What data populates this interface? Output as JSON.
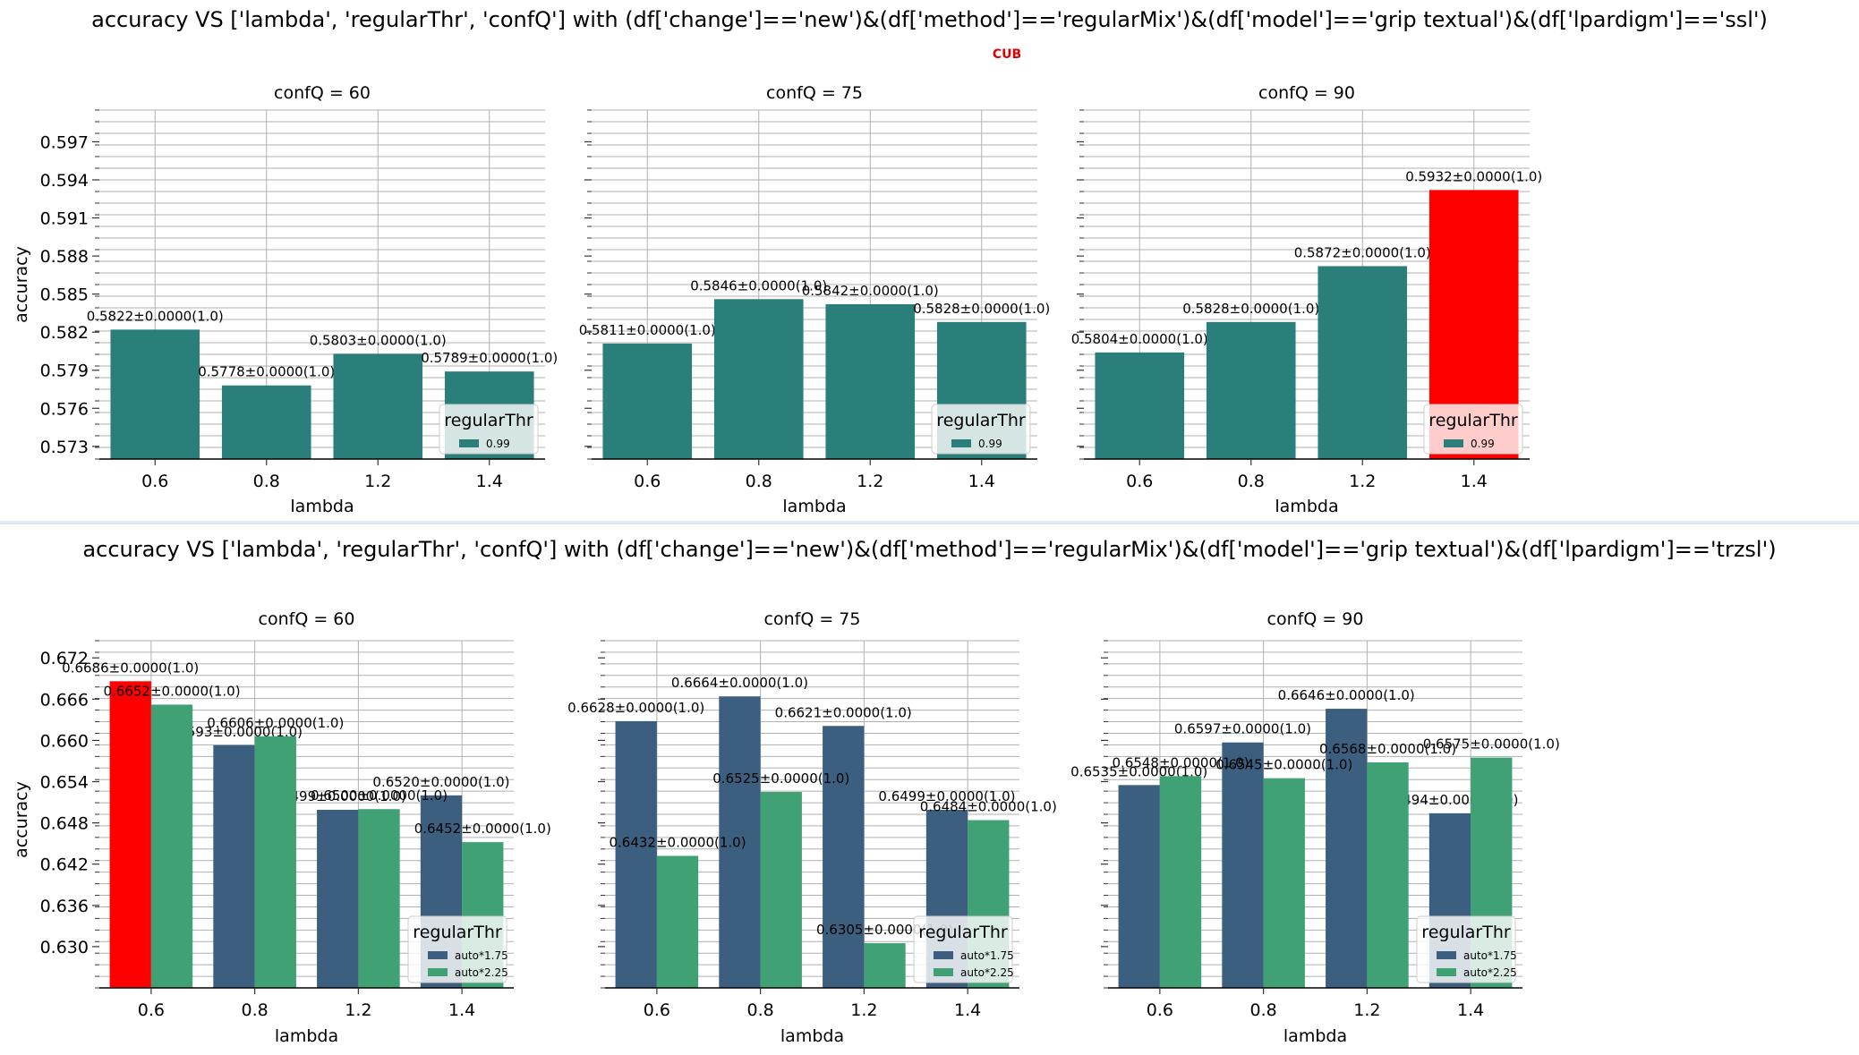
{
  "colors": {
    "teal": "#2a7f7a",
    "navy": "#3d5f7f",
    "green": "#3fa174",
    "highlight": "#ff0000",
    "grid": "#b0b0b0"
  },
  "figures": [
    {
      "title": "accuracy VS ['lambda', 'regularThr', 'confQ'] with (df['change']=='new')&(df['method']=='regularMix')&(df['model']=='grip textual')&(df['lpardigm']=='ssl')",
      "subtitle": "CUB"
    },
    {
      "title": "accuracy VS ['lambda', 'regularThr', 'confQ'] with (df['change']=='new')&(df['method']=='regularMix')&(df['model']=='grip textual')&(df['lpardigm']=='trzsl')",
      "subtitle": ""
    }
  ],
  "chart_data": [
    {
      "type": "bar",
      "xlabel": "lambda",
      "ylabel": "accuracy",
      "ylim": [
        0.572,
        0.5995
      ],
      "yticks": [
        "0.573",
        "0.576",
        "0.579",
        "0.582",
        "0.585",
        "0.588",
        "0.591",
        "0.594",
        "0.597"
      ],
      "categories": [
        "0.6",
        "0.8",
        "1.2",
        "1.4"
      ],
      "legend_title": "regularThr",
      "legend_position": "lower right",
      "grid": true,
      "panels": [
        {
          "title": "confQ = 60",
          "series": [
            {
              "name": "0.99",
              "values": [
                0.5822,
                0.5778,
                0.5803,
                0.5789
              ],
              "labels": [
                "0.5822±0.0000(1.0)",
                "0.5778±0.0000(1.0)",
                "0.5803±0.0000(1.0)",
                "0.5789±0.0000(1.0)"
              ]
            }
          ]
        },
        {
          "title": "confQ = 75",
          "series": [
            {
              "name": "0.99",
              "values": [
                0.5811,
                0.5846,
                0.5842,
                0.5828
              ],
              "labels": [
                "0.5811±0.0000(1.0)",
                "0.5846±0.0000(1.0)",
                "0.5842±0.0000(1.0)",
                "0.5828±0.0000(1.0)"
              ]
            }
          ]
        },
        {
          "title": "confQ = 90",
          "series": [
            {
              "name": "0.99",
              "values": [
                0.5804,
                0.5828,
                0.5872,
                0.5932
              ],
              "labels": [
                "0.5804±0.0000(1.0)",
                "0.5828±0.0000(1.0)",
                "0.5872±0.0000(1.0)",
                "0.5932±0.0000(1.0)"
              ],
              "highlight": [
                3
              ]
            }
          ]
        }
      ]
    },
    {
      "type": "bar",
      "xlabel": "lambda",
      "ylabel": "accuracy",
      "ylim": [
        0.624,
        0.6745
      ],
      "yticks": [
        "0.630",
        "0.636",
        "0.642",
        "0.648",
        "0.654",
        "0.660",
        "0.666",
        "0.672"
      ],
      "categories": [
        "0.6",
        "0.8",
        "1.2",
        "1.4"
      ],
      "legend_title": "regularThr",
      "legend_position": "lower right",
      "grid": true,
      "panels": [
        {
          "title": "confQ = 60",
          "series": [
            {
              "name": "auto*1.75",
              "values": [
                0.6686,
                0.6593,
                0.6499,
                0.652
              ],
              "labels": [
                "0.6686±0.0000(1.0)",
                "0.6593±0.0000(1.0)",
                "0.6499±0.0000(1.0)",
                "0.6520±0.0000(1.0)"
              ],
              "highlight": [
                0
              ]
            },
            {
              "name": "auto*2.25",
              "values": [
                0.6652,
                0.6606,
                0.65,
                0.6452
              ],
              "labels": [
                "0.6652±0.0000(1.0)",
                "0.6606±0.0000(1.0)",
                "0.6500±0.0000(1.0)",
                "0.6452±0.0000(1.0)"
              ]
            }
          ]
        },
        {
          "title": "confQ = 75",
          "series": [
            {
              "name": "auto*1.75",
              "values": [
                0.6628,
                0.6664,
                0.6621,
                0.6499
              ],
              "labels": [
                "0.6628±0.0000(1.0)",
                "0.6664±0.0000(1.0)",
                "0.6621±0.0000(1.0)",
                "0.6499±0.0000(1.0)"
              ]
            },
            {
              "name": "auto*2.25",
              "values": [
                0.6432,
                0.6525,
                0.6305,
                0.6484
              ],
              "labels": [
                "0.6432±0.0000(1.0)",
                "0.6525±0.0000(1.0)",
                "0.6305±0.0000(1.0)",
                "0.6484±0.0000(1.0)"
              ]
            }
          ]
        },
        {
          "title": "confQ = 90",
          "series": [
            {
              "name": "auto*1.75",
              "values": [
                0.6535,
                0.6597,
                0.6646,
                0.6494
              ],
              "labels": [
                "0.6535±0.0000(1.0)",
                "0.6597±0.0000(1.0)",
                "0.6646±0.0000(1.0)",
                "0.6494±0.0000(1.0)"
              ]
            },
            {
              "name": "auto*2.25",
              "values": [
                0.6548,
                0.6545,
                0.6568,
                0.6575
              ],
              "labels": [
                "0.6548±0.0000(1.0)",
                "0.6545±0.0000(1.0)",
                "0.6568±0.0000(1.0)",
                "0.6575±0.0000(1.0)"
              ]
            }
          ]
        }
      ]
    }
  ]
}
